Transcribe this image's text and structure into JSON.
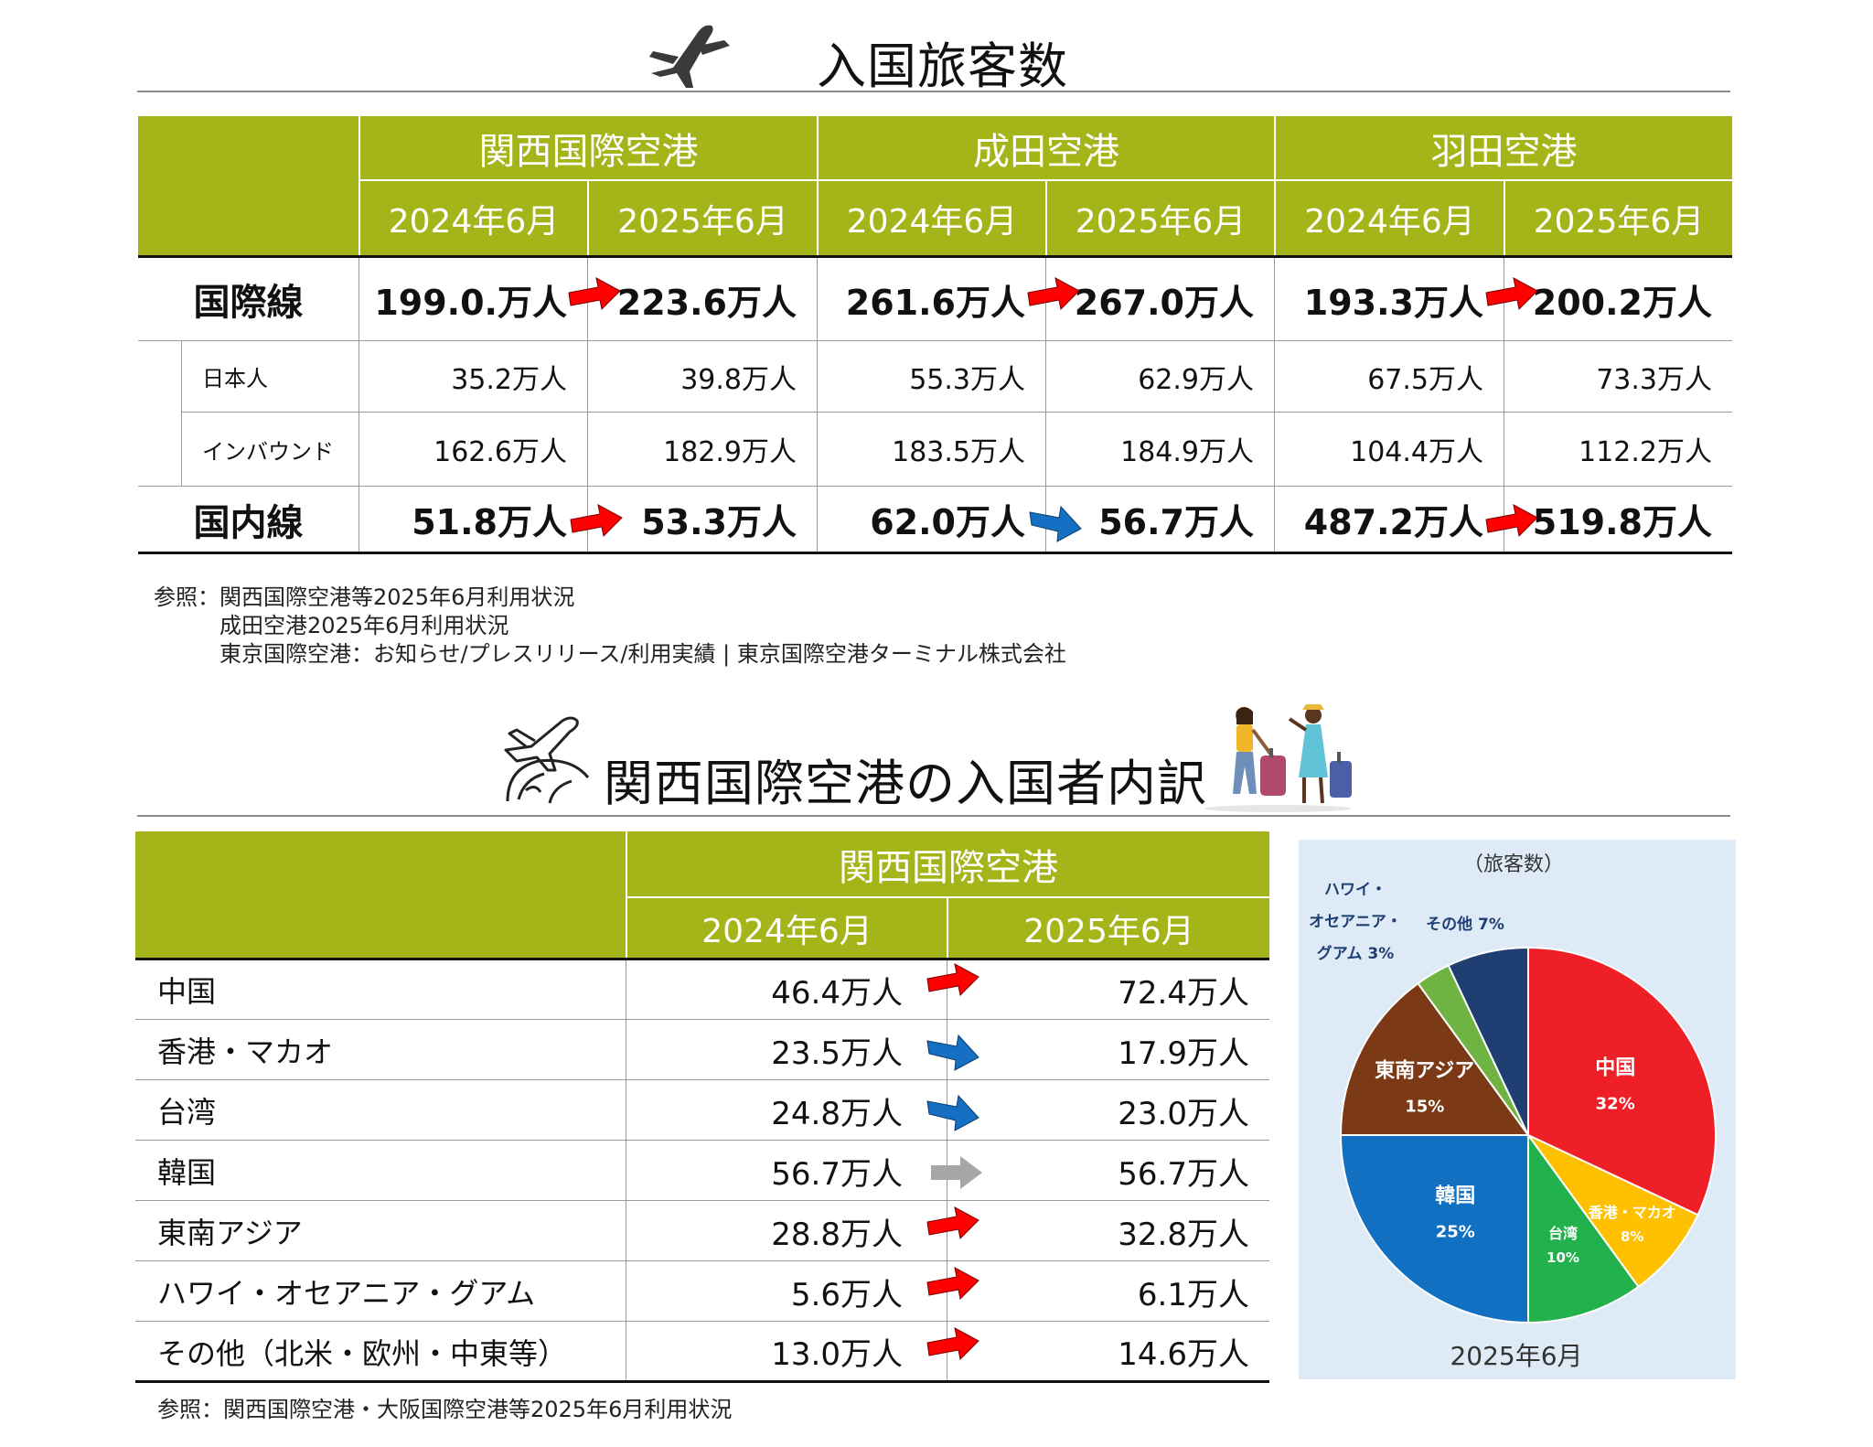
{
  "section1": {
    "title": "入国旅客数",
    "airports": [
      "関西国際空港",
      "成田空港",
      "羽田空港"
    ],
    "years": [
      "2024年6月",
      "2025年6月",
      "2024年6月",
      "2025年6月",
      "2024年6月",
      "2025年6月"
    ],
    "rows": [
      {
        "label": "国際線",
        "values": [
          "199.0.万人",
          "223.6万人",
          "261.6万人",
          "267.0万人",
          "193.3万人",
          "200.2万人"
        ],
        "trends": [
          "up",
          "up",
          "up"
        ]
      },
      {
        "label": "日本人",
        "values": [
          "35.2万人",
          "39.8万人",
          "55.3万人",
          "62.9万人",
          "67.5万人",
          "73.3万人"
        ]
      },
      {
        "label": "インバウンド",
        "values": [
          "162.6万人",
          "182.9万人",
          "183.5万人",
          "184.9万人",
          "104.4万人",
          "112.2万人"
        ]
      },
      {
        "label": "国内線",
        "values": [
          "51.8万人",
          "53.3万人",
          "62.0万人",
          "56.7万人",
          "487.2万人",
          "519.8万人"
        ],
        "trends": [
          "up",
          "down",
          "up"
        ]
      }
    ],
    "references": [
      "参照：関西国際空港等2025年6月利用状況",
      "成田空港2025年6月利用状況",
      "東京国際空港：お知らせ/プレスリリース/利用実績 | 東京国際空港ターミナル株式会社"
    ]
  },
  "section2": {
    "title": "関西国際空港の入国者内訳",
    "airport": "関西国際空港",
    "years": [
      "2024年6月",
      "2025年6月"
    ],
    "rows": [
      {
        "label": "中国",
        "v2024": "46.4万人",
        "v2025": "72.4万人",
        "trend": "up"
      },
      {
        "label": "香港・マカオ",
        "v2024": "23.5万人",
        "v2025": "17.9万人",
        "trend": "down"
      },
      {
        "label": "台湾",
        "v2024": "24.8万人",
        "v2025": "23.0万人",
        "trend": "down"
      },
      {
        "label": "韓国",
        "v2024": "56.7万人",
        "v2025": "56.7万人",
        "trend": "flat"
      },
      {
        "label": "東南アジア",
        "v2024": "28.8万人",
        "v2025": "32.8万人",
        "trend": "up"
      },
      {
        "label": "ハワイ・オセアニア・グアム",
        "v2024": "5.6万人",
        "v2025": "6.1万人",
        "trend": "up"
      },
      {
        "label": "その他（北米・欧州・中東等）",
        "v2024": "13.0万人",
        "v2025": "14.6万人",
        "trend": "up"
      }
    ],
    "reference": "参照：関西国際空港・大阪国際空港等2025年6月利用状況"
  },
  "chart_data": {
    "type": "pie",
    "title": "（旅客数）",
    "caption": "2025年6月",
    "slices": [
      {
        "label": "中国",
        "value": 32,
        "pct": "32%",
        "color": "#ee1f26"
      },
      {
        "label": "香港・マカオ",
        "value": 8,
        "pct": "8%",
        "color": "#ffc000"
      },
      {
        "label": "台湾",
        "value": 10,
        "pct": "10%",
        "color": "#22b14c"
      },
      {
        "label": "韓国",
        "value": 25,
        "pct": "25%",
        "color": "#1170c1"
      },
      {
        "label": "東南アジア",
        "value": 15,
        "pct": "15%",
        "color": "#7b3915"
      },
      {
        "label": "ハワイ・オセアニア・グアム",
        "value": 3,
        "pct": "3%",
        "color": "#6fb443"
      },
      {
        "label": "その他",
        "value": 7,
        "pct": "7%",
        "color": "#1f3f73"
      }
    ],
    "outside_labels": {
      "hawaii_lines": [
        "ハワイ・",
        "オセアニア・",
        "グアム 3%"
      ],
      "other": "その他 7%"
    }
  },
  "colors": {
    "header_green": "#a4b419",
    "arrow_red": "#ff0000",
    "arrow_blue": "#1570c4",
    "arrow_gray": "#a6a6a6"
  }
}
